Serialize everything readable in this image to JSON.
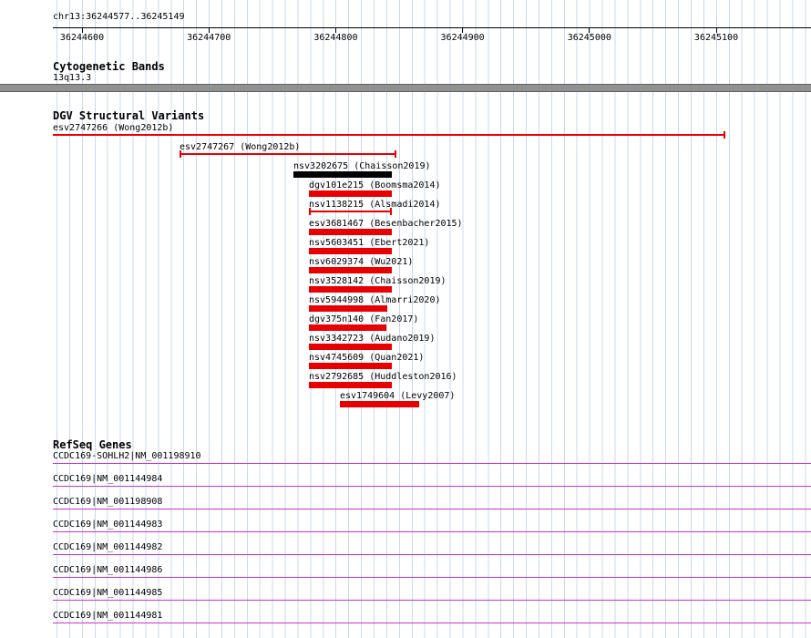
{
  "header": {
    "region_label": "chr13:36244577..36245149"
  },
  "colors": {
    "grid": "#c9d9ef",
    "axis": "#000000",
    "red": "#e80000",
    "black": "#000000",
    "magenta": "#c836c8",
    "cytoband_fill": "#919191",
    "cytoband_border": "#606060",
    "background": "#ffffff",
    "text": "#000000"
  },
  "chart_data": {
    "type": "bar",
    "subtype": "genome-browser-tracks",
    "title": "chr13:36244577..36245149",
    "x_axis": {
      "range": [
        36244577,
        36245149
      ],
      "ticks": [
        {
          "value": 36244600,
          "label": "36244600"
        },
        {
          "value": 36244700,
          "label": "36244700"
        },
        {
          "value": 36244800,
          "label": "36244800"
        },
        {
          "value": 36244900,
          "label": "36244900"
        },
        {
          "value": 36245000,
          "label": "36245000"
        },
        {
          "value": 36245100,
          "label": "36245100"
        }
      ],
      "grid": true
    },
    "tracks": [
      {
        "name": "Cytogenetic Bands",
        "features": [
          {
            "label": "13q13.3",
            "glyph": "cytoband",
            "start": 36244577,
            "end": 36245149
          }
        ]
      },
      {
        "name": "DGV Structural Variants",
        "features": [
          {
            "label": "esv2747266 (Wong2012b)",
            "start": 36244577,
            "end": 36245107,
            "glyph": "range",
            "caps": "right",
            "color": "red",
            "label_at_margin": true
          },
          {
            "label": "esv2747267 (Wong2012b)",
            "start": 36244677,
            "end": 36244848,
            "glyph": "range",
            "caps": "both",
            "color": "red"
          },
          {
            "label": "nsv3202675 (Chaisson2019)",
            "start": 36244767,
            "end": 36244844,
            "glyph": "box",
            "color": "black"
          },
          {
            "label": "dgv101e215 (Boomsma2014)",
            "start": 36244779,
            "end": 36244844,
            "glyph": "box",
            "color": "red"
          },
          {
            "label": "nsv1138215 (Alsmadi2014)",
            "start": 36244779,
            "end": 36244844,
            "glyph": "range",
            "caps": "both",
            "color": "red"
          },
          {
            "label": "esv3681467 (Besenbacher2015)",
            "start": 36244779,
            "end": 36244844,
            "glyph": "box",
            "color": "red"
          },
          {
            "label": "nsv5603451 (Ebert2021)",
            "start": 36244779,
            "end": 36244844,
            "glyph": "box",
            "color": "red"
          },
          {
            "label": "nsv6029374 (Wu2021)",
            "start": 36244779,
            "end": 36244844,
            "glyph": "box",
            "color": "red"
          },
          {
            "label": "nsv3528142 (Chaisson2019)",
            "start": 36244779,
            "end": 36244844,
            "glyph": "box",
            "color": "red"
          },
          {
            "label": "nsv5944998 (Almarri2020)",
            "start": 36244779,
            "end": 36244841,
            "glyph": "box",
            "color": "red"
          },
          {
            "label": "dgv375n140 (Fan2017)",
            "start": 36244779,
            "end": 36244840,
            "glyph": "box",
            "color": "red"
          },
          {
            "label": "nsv3342723 (Audano2019)",
            "start": 36244779,
            "end": 36244844,
            "glyph": "box",
            "color": "red"
          },
          {
            "label": "nsv4745609 (Quan2021)",
            "start": 36244779,
            "end": 36244844,
            "glyph": "box",
            "color": "red"
          },
          {
            "label": "nsv2792685 (Huddleston2016)",
            "start": 36244779,
            "end": 36244844,
            "glyph": "box",
            "color": "red"
          },
          {
            "label": "esv1749604 (Levy2007)",
            "start": 36244803,
            "end": 36244866,
            "glyph": "box",
            "color": "red"
          }
        ]
      },
      {
        "name": "RefSeq Genes",
        "features": [
          {
            "label": "CCDC169-SOHLH2|NM_001198910",
            "glyph": "transcript-line",
            "start": 36244577,
            "end": 36245149
          },
          {
            "label": "CCDC169|NM_001144984",
            "glyph": "transcript-line",
            "start": 36244577,
            "end": 36245149
          },
          {
            "label": "CCDC169|NM_001198908",
            "glyph": "transcript-line",
            "start": 36244577,
            "end": 36245149
          },
          {
            "label": "CCDC169|NM_001144983",
            "glyph": "transcript-line",
            "start": 36244577,
            "end": 36245149
          },
          {
            "label": "CCDC169|NM_001144982",
            "glyph": "transcript-line",
            "start": 36244577,
            "end": 36245149
          },
          {
            "label": "CCDC169|NM_001144986",
            "glyph": "transcript-line",
            "start": 36244577,
            "end": 36245149
          },
          {
            "label": "CCDC169|NM_001144985",
            "glyph": "transcript-line",
            "start": 36244577,
            "end": 36245149
          },
          {
            "label": "CCDC169|NM_001144981",
            "glyph": "transcript-line",
            "start": 36244577,
            "end": 36245149
          }
        ]
      }
    ]
  }
}
